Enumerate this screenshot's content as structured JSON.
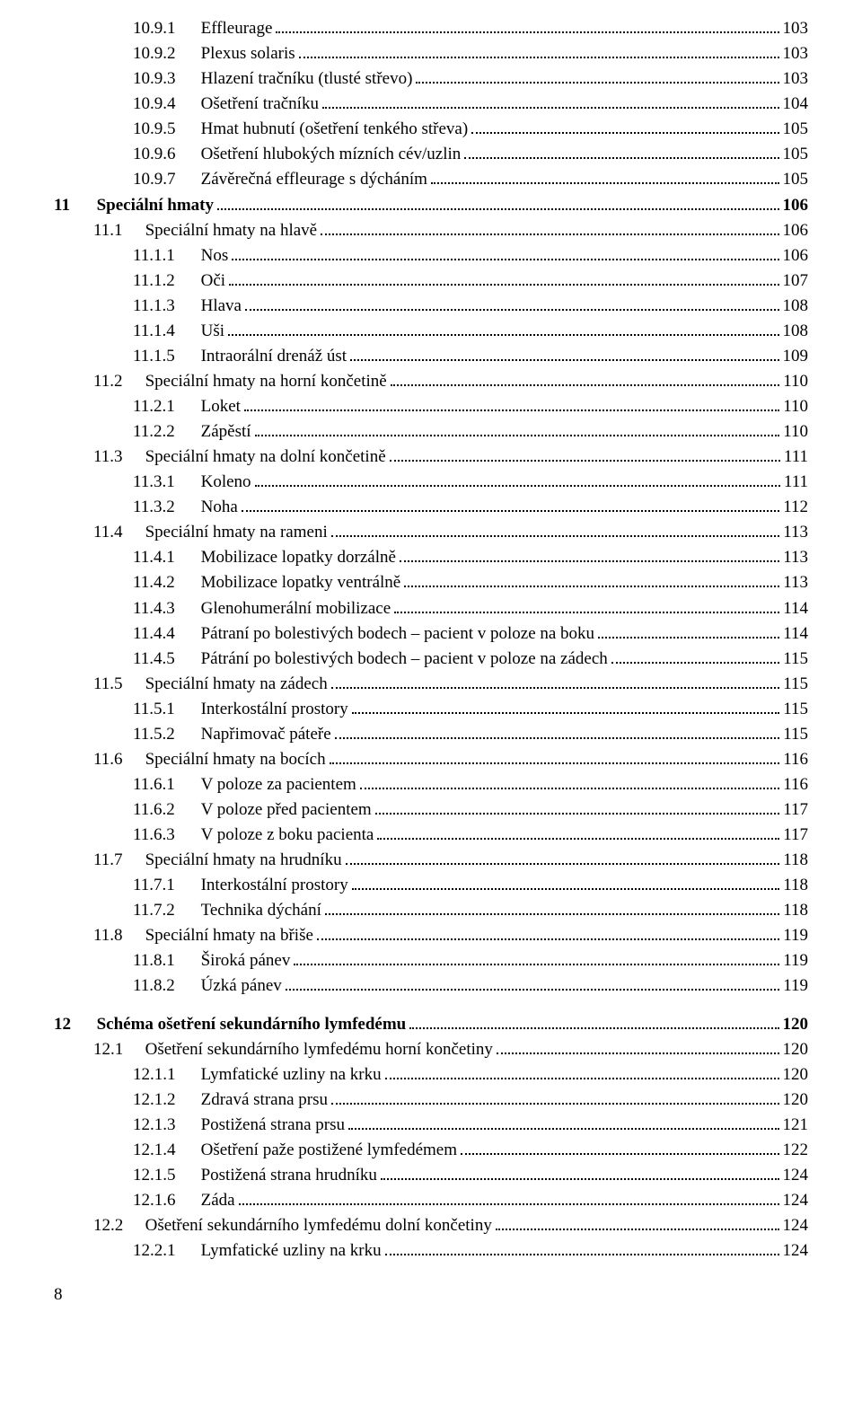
{
  "page_footer_number": "8",
  "entries": [
    {
      "level": "sub",
      "num": "10.9.1",
      "label": "Effleurage",
      "page": "103"
    },
    {
      "level": "sub",
      "num": "10.9.2",
      "label": "Plexus solaris",
      "page": "103"
    },
    {
      "level": "sub",
      "num": "10.9.3",
      "label": "Hlazení tračníku (tlusté střevo)",
      "page": "103"
    },
    {
      "level": "sub",
      "num": "10.9.4",
      "label": "Ošetření tračníku",
      "page": "104"
    },
    {
      "level": "sub",
      "num": "10.9.5",
      "label": "Hmat hubnutí (ošetření tenkého střeva)",
      "page": "105"
    },
    {
      "level": "sub",
      "num": "10.9.6",
      "label": "Ošetření hlubokých mízních cév/uzlin",
      "page": "105"
    },
    {
      "level": "sub",
      "num": "10.9.7",
      "label": "Závěrečná effleurage s dýcháním",
      "page": "105"
    },
    {
      "level": "chap",
      "num": "11",
      "label": "Speciální hmaty",
      "page": "106",
      "bold": true
    },
    {
      "level": "sec",
      "num": "11.1",
      "label": "Speciální hmaty na hlavě",
      "page": "106"
    },
    {
      "level": "sub",
      "num": "11.1.1",
      "label": "Nos",
      "page": "106"
    },
    {
      "level": "sub",
      "num": "11.1.2",
      "label": "Oči",
      "page": "107"
    },
    {
      "level": "sub",
      "num": "11.1.3",
      "label": "Hlava",
      "page": "108"
    },
    {
      "level": "sub",
      "num": "11.1.4",
      "label": "Uši",
      "page": "108"
    },
    {
      "level": "sub",
      "num": "11.1.5",
      "label": "Intraorální drenáž úst",
      "page": "109"
    },
    {
      "level": "sec",
      "num": "11.2",
      "label": "Speciální hmaty na horní končetině",
      "page": "110"
    },
    {
      "level": "sub",
      "num": "11.2.1",
      "label": "Loket",
      "page": "110"
    },
    {
      "level": "sub",
      "num": "11.2.2",
      "label": "Zápěstí",
      "page": "110"
    },
    {
      "level": "sec",
      "num": "11.3",
      "label": "Speciální hmaty na dolní končetině",
      "page": "111"
    },
    {
      "level": "sub",
      "num": "11.3.1",
      "label": "Koleno",
      "page": "111"
    },
    {
      "level": "sub",
      "num": "11.3.2",
      "label": "Noha",
      "page": "112"
    },
    {
      "level": "sec",
      "num": "11.4",
      "label": "Speciální hmaty na rameni",
      "page": "113"
    },
    {
      "level": "sub",
      "num": "11.4.1",
      "label": "Mobilizace lopatky dorzálně",
      "page": "113"
    },
    {
      "level": "sub",
      "num": "11.4.2",
      "label": "Mobilizace lopatky ventrálně",
      "page": "113"
    },
    {
      "level": "sub",
      "num": "11.4.3",
      "label": "Glenohumerální mobilizace",
      "page": "114"
    },
    {
      "level": "sub",
      "num": "11.4.4",
      "label": "Pátraní po bolestivých bodech – pacient v poloze na boku",
      "page": "114"
    },
    {
      "level": "sub",
      "num": "11.4.5",
      "label": "Pátrání po bolestivých bodech – pacient v poloze na zádech",
      "page": "115"
    },
    {
      "level": "sec",
      "num": "11.5",
      "label": "Speciální hmaty na zádech",
      "page": "115"
    },
    {
      "level": "sub",
      "num": "11.5.1",
      "label": "Interkostální prostory",
      "page": "115"
    },
    {
      "level": "sub",
      "num": "11.5.2",
      "label": "Napřimovač páteře",
      "page": "115"
    },
    {
      "level": "sec",
      "num": "11.6",
      "label": "Speciální hmaty na bocích",
      "page": "116"
    },
    {
      "level": "sub",
      "num": "11.6.1",
      "label": "V poloze za pacientem",
      "page": "116"
    },
    {
      "level": "sub",
      "num": "11.6.2",
      "label": "V poloze před pacientem",
      "page": "117"
    },
    {
      "level": "sub",
      "num": "11.6.3",
      "label": "V poloze z boku pacienta",
      "page": "117"
    },
    {
      "level": "sec",
      "num": "11.7",
      "label": "Speciální hmaty na hrudníku",
      "page": "118"
    },
    {
      "level": "sub",
      "num": "11.7.1",
      "label": "Interkostální prostory",
      "page": "118"
    },
    {
      "level": "sub",
      "num": "11.7.2",
      "label": "Technika dýchání",
      "page": "118"
    },
    {
      "level": "sec",
      "num": "11.8",
      "label": "Speciální hmaty na břiše",
      "page": "119"
    },
    {
      "level": "sub",
      "num": "11.8.1",
      "label": "Široká pánev",
      "page": "119"
    },
    {
      "level": "sub",
      "num": "11.8.2",
      "label": "Úzká pánev",
      "page": "119"
    },
    {
      "gap": true
    },
    {
      "level": "chap",
      "num": "12",
      "label": "Schéma ošetření sekundárního lymfedému",
      "page": "120",
      "bold": true
    },
    {
      "level": "sec",
      "num": "12.1",
      "label": "Ošetření sekundárního lymfedému horní končetiny",
      "page": "120"
    },
    {
      "level": "sub",
      "num": "12.1.1",
      "label": "Lymfatické uzliny na krku",
      "page": "120"
    },
    {
      "level": "sub",
      "num": "12.1.2",
      "label": "Zdravá strana prsu",
      "page": "120"
    },
    {
      "level": "sub",
      "num": "12.1.3",
      "label": "Postižená strana prsu",
      "page": "121"
    },
    {
      "level": "sub",
      "num": "12.1.4",
      "label": "Ošetření paže postižené lymfedémem",
      "page": "122"
    },
    {
      "level": "sub",
      "num": "12.1.5",
      "label": "Postižená strana hrudníku",
      "page": "124"
    },
    {
      "level": "sub",
      "num": "12.1.6",
      "label": "Záda",
      "page": "124"
    },
    {
      "level": "sec",
      "num": "12.2",
      "label": "Ošetření sekundárního lymfedému dolní končetiny",
      "page": "124"
    },
    {
      "level": "sub",
      "num": "12.2.1",
      "label": "Lymfatické uzliny na krku",
      "page": "124"
    }
  ]
}
